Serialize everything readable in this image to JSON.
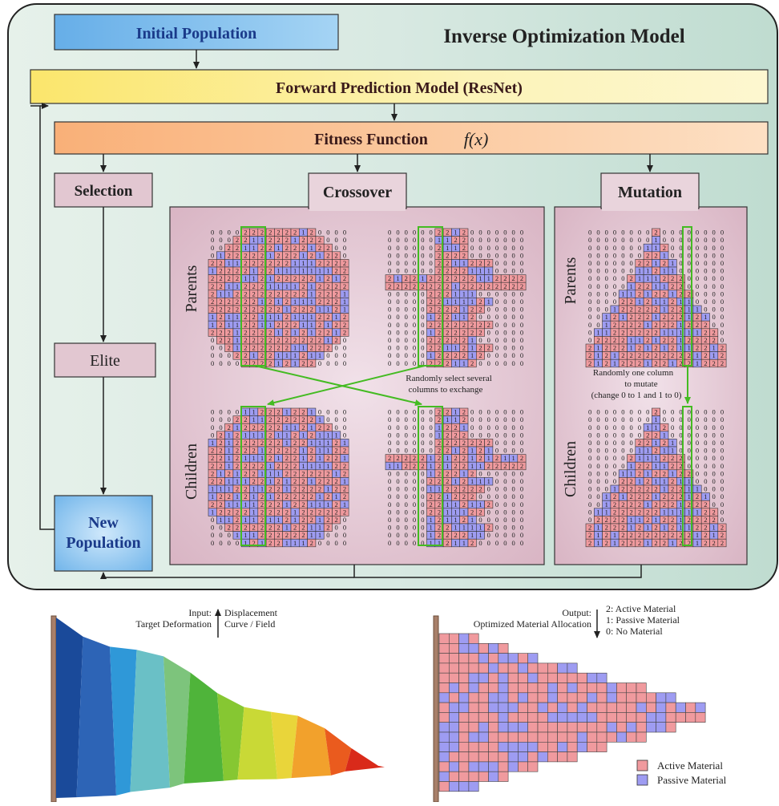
{
  "title": "Inverse Optimization Model",
  "boxes": {
    "initial_population": "Initial Population",
    "forward_model": "Forward Prediction Model (ResNet)",
    "fitness": "Fitness Function",
    "fitness_formula": "f(x)",
    "selection": "Selection",
    "elite": "Elite",
    "new_population_line1": "New",
    "new_population_line2": "Population",
    "crossover": "Crossover",
    "mutation": "Mutation"
  },
  "side_labels": {
    "parents": "Parents",
    "children": "Children"
  },
  "notes": {
    "crossover_line1": "Randomly select several",
    "crossover_line2": "columns to exchange",
    "mutation_line1": "Randomly one column",
    "mutation_line2": "to mutate",
    "mutation_line3": "(change 0 to 1 and 1 to 0)"
  },
  "io": {
    "input_line1": "Input:",
    "input_line2": "Target Deformation",
    "displacement_line1": "Displacement",
    "displacement_line2": "Curve / Field",
    "output_line1": "Output:",
    "output_line2": "Optimized Material Allocation",
    "code2": "2: Active Material",
    "code1": "1: Passive Material",
    "code0": "0: No Material"
  },
  "legend": {
    "active": "Active Material",
    "passive": "Passive Material"
  },
  "colors": {
    "active": "#f09a9e",
    "passive": "#9e9cf2",
    "outer_panel": "#dcebe4",
    "panel_pink": "#e3c8d3",
    "arrow_green": "#44bb22"
  }
}
